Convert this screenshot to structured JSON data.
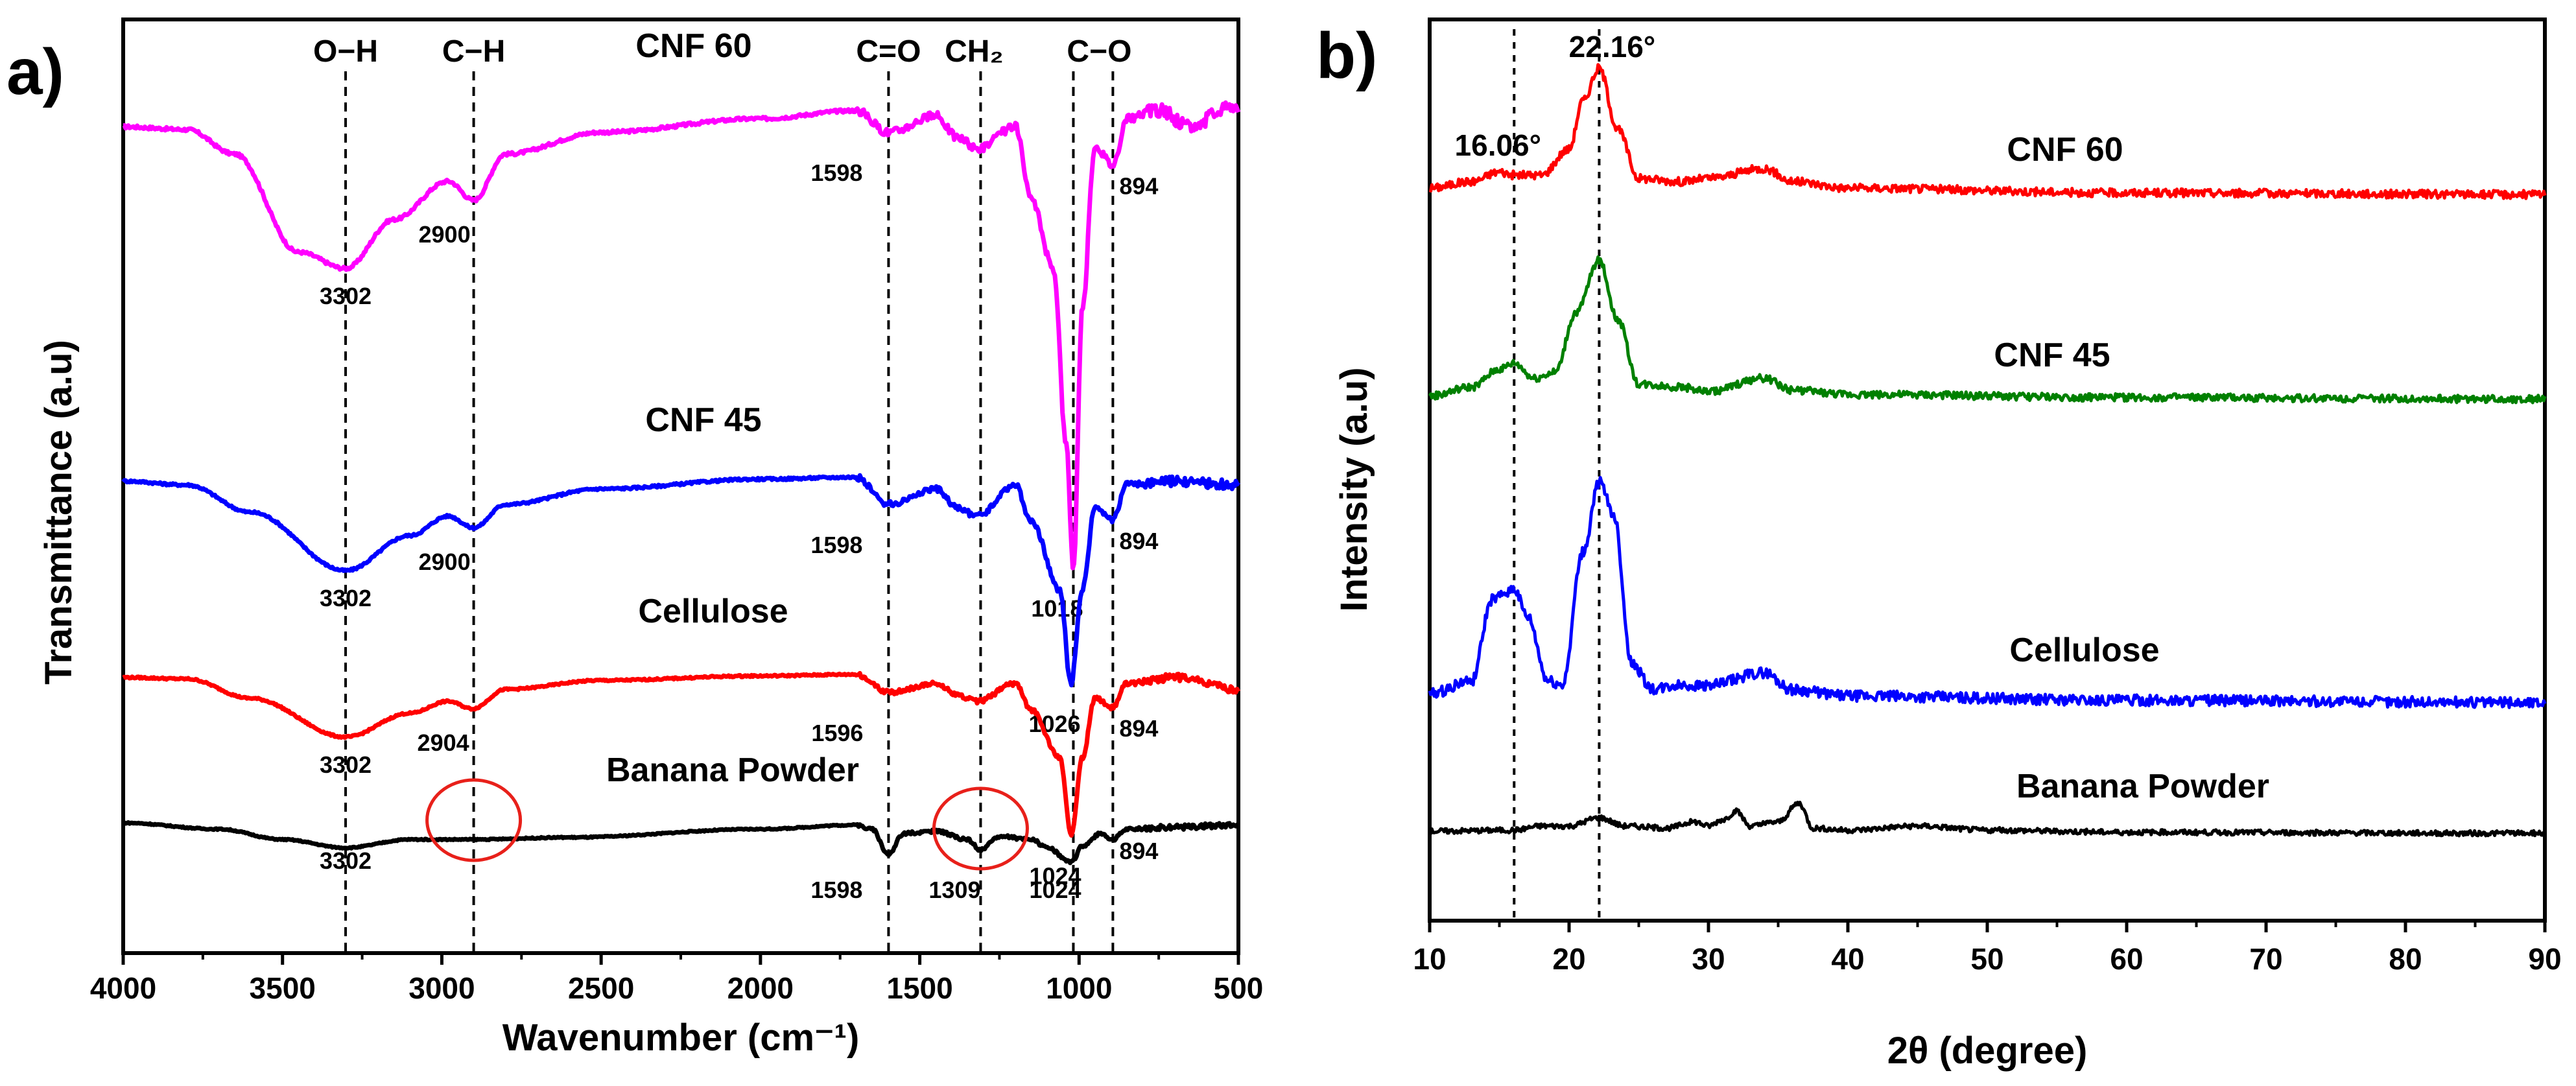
{
  "panels": [
    {
      "letter": "a)",
      "xlabel": "Wavenumber (cm⁻¹)",
      "ylabel": "Transmittance (a.u)",
      "xticks": [
        "4000",
        "3500",
        "3000",
        "2500",
        "2000",
        "1500",
        "1000",
        "500"
      ],
      "band_labels": [
        "O−H",
        "C−H",
        "C=O",
        "CH₂",
        "C−O"
      ]
    },
    {
      "letter": "b)",
      "xlabel": "2θ (degree)",
      "ylabel": "Intensity (a.u)",
      "xticks": [
        "10",
        "20",
        "30",
        "40",
        "50",
        "60",
        "70",
        "80",
        "90"
      ],
      "peak_labels": [
        "16.06°",
        "22.16°"
      ]
    }
  ],
  "chart_data": [
    {
      "type": "line",
      "title": "",
      "xlabel": "Wavenumber (cm⁻¹)",
      "ylabel": "Transmittance (a.u)",
      "xlim": [
        4000,
        500
      ],
      "x_reversed": true,
      "y_ticks_shown": false,
      "grid": false,
      "legend": "none (series labelled directly on curves)",
      "reference_lines_x": [
        3302,
        2900,
        1598,
        1309,
        1018,
        894
      ],
      "band_assignments": [
        {
          "label": "O−H",
          "x": 3302
        },
        {
          "label": "C−H",
          "x": 2900
        },
        {
          "label": "C=O",
          "x": 1598
        },
        {
          "label": "CH₂",
          "x": 1309
        },
        {
          "label": "C−O",
          "x": 1018
        }
      ],
      "series": [
        {
          "name": "CNF 60",
          "color": "#ff00ff",
          "offset": 3,
          "peaks": [
            "3302",
            "2900",
            "1598",
            "1018",
            "894"
          ],
          "points": [
            [
              4000,
              0.82
            ],
            [
              3800,
              0.81
            ],
            [
              3650,
              0.72
            ],
            [
              3450,
              0.36
            ],
            [
              3302,
              0.3
            ],
            [
              3150,
              0.48
            ],
            [
              2980,
              0.62
            ],
            [
              2900,
              0.55
            ],
            [
              2800,
              0.72
            ],
            [
              2500,
              0.8
            ],
            [
              2000,
              0.85
            ],
            [
              1700,
              0.88
            ],
            [
              1598,
              0.8
            ],
            [
              1450,
              0.86
            ],
            [
              1380,
              0.78
            ],
            [
              1320,
              0.74
            ],
            [
              1200,
              0.82
            ],
            [
              1150,
              0.55
            ],
            [
              1080,
              0.3
            ],
            [
              1040,
              -0.35
            ],
            [
              1018,
              -0.8
            ],
            [
              990,
              0.15
            ],
            [
              950,
              0.75
            ],
            [
              894,
              0.68
            ],
            [
              850,
              0.85
            ],
            [
              750,
              0.88
            ],
            [
              650,
              0.82
            ],
            [
              520,
              0.9
            ],
            [
              500,
              0.88
            ]
          ]
        },
        {
          "name": "CNF 45",
          "color": "#0000ff",
          "offset": 2,
          "peaks": [
            "3302",
            "2900",
            "1598",
            "1026",
            "894"
          ],
          "points": [
            [
              4000,
              0.76
            ],
            [
              3800,
              0.74
            ],
            [
              3600,
              0.6
            ],
            [
              3302,
              0.3
            ],
            [
              3100,
              0.48
            ],
            [
              2980,
              0.58
            ],
            [
              2900,
              0.52
            ],
            [
              2800,
              0.64
            ],
            [
              2500,
              0.72
            ],
            [
              2000,
              0.77
            ],
            [
              1700,
              0.78
            ],
            [
              1598,
              0.64
            ],
            [
              1450,
              0.72
            ],
            [
              1380,
              0.62
            ],
            [
              1320,
              0.58
            ],
            [
              1200,
              0.74
            ],
            [
              1150,
              0.55
            ],
            [
              1060,
              0.2
            ],
            [
              1026,
              -0.28
            ],
            [
              990,
              0.2
            ],
            [
              950,
              0.62
            ],
            [
              894,
              0.56
            ],
            [
              850,
              0.74
            ],
            [
              700,
              0.76
            ],
            [
              500,
              0.74
            ]
          ]
        },
        {
          "name": "Cellulose",
          "color": "#ff0000",
          "offset": 1,
          "peaks": [
            "3302",
            "2904",
            "1596",
            "1024",
            "894"
          ],
          "points": [
            [
              4000,
              0.74
            ],
            [
              3800,
              0.73
            ],
            [
              3600,
              0.6
            ],
            [
              3302,
              0.34
            ],
            [
              3100,
              0.5
            ],
            [
              2980,
              0.58
            ],
            [
              2904,
              0.53
            ],
            [
              2800,
              0.66
            ],
            [
              2500,
              0.72
            ],
            [
              2000,
              0.75
            ],
            [
              1700,
              0.76
            ],
            [
              1596,
              0.64
            ],
            [
              1450,
              0.7
            ],
            [
              1380,
              0.62
            ],
            [
              1320,
              0.58
            ],
            [
              1200,
              0.7
            ],
            [
              1150,
              0.52
            ],
            [
              1060,
              0.2
            ],
            [
              1024,
              -0.32
            ],
            [
              990,
              0.2
            ],
            [
              950,
              0.6
            ],
            [
              894,
              0.54
            ],
            [
              850,
              0.7
            ],
            [
              700,
              0.74
            ],
            [
              500,
              0.66
            ]
          ]
        },
        {
          "name": "Banana Powder",
          "color": "#000000",
          "offset": 0,
          "peaks": [
            "3302",
            "1598",
            "1309",
            "1024",
            "894"
          ],
          "points": [
            [
              4000,
              0.88
            ],
            [
              3700,
              0.82
            ],
            [
              3500,
              0.72
            ],
            [
              3302,
              0.64
            ],
            [
              3100,
              0.72
            ],
            [
              2900,
              0.72
            ],
            [
              2600,
              0.74
            ],
            [
              2000,
              0.82
            ],
            [
              1700,
              0.86
            ],
            [
              1650,
              0.82
            ],
            [
              1598,
              0.58
            ],
            [
              1550,
              0.78
            ],
            [
              1450,
              0.8
            ],
            [
              1350,
              0.72
            ],
            [
              1309,
              0.62
            ],
            [
              1250,
              0.75
            ],
            [
              1150,
              0.72
            ],
            [
              1100,
              0.64
            ],
            [
              1024,
              0.5
            ],
            [
              990,
              0.66
            ],
            [
              930,
              0.78
            ],
            [
              894,
              0.72
            ],
            [
              850,
              0.82
            ],
            [
              700,
              0.84
            ],
            [
              500,
              0.86
            ]
          ]
        }
      ]
    },
    {
      "type": "line",
      "title": "",
      "xlabel": "2θ (degree)",
      "ylabel": "Intensity (a.u)",
      "xlim": [
        10,
        90
      ],
      "y_ticks_shown": false,
      "grid": false,
      "legend": "none (series labelled directly on curves)",
      "reference_lines_x": [
        16.06,
        22.16
      ],
      "series": [
        {
          "name": "CNF 60",
          "color": "#ff0000",
          "offset": 3,
          "points": [
            [
              10,
              0.06
            ],
            [
              13,
              0.1
            ],
            [
              15,
              0.16
            ],
            [
              16.06,
              0.14
            ],
            [
              18,
              0.14
            ],
            [
              20,
              0.3
            ],
            [
              21,
              0.6
            ],
            [
              22.16,
              0.8
            ],
            [
              23.5,
              0.42
            ],
            [
              25,
              0.12
            ],
            [
              28,
              0.1
            ],
            [
              30,
              0.12
            ],
            [
              34,
              0.18
            ],
            [
              36,
              0.1
            ],
            [
              40,
              0.06
            ],
            [
              60,
              0.03
            ],
            [
              90,
              0.02
            ]
          ]
        },
        {
          "name": "CNF 45",
          "color": "#008000",
          "offset": 2,
          "points": [
            [
              10,
              0.04
            ],
            [
              13,
              0.1
            ],
            [
              15,
              0.22
            ],
            [
              16.06,
              0.26
            ],
            [
              17.5,
              0.16
            ],
            [
              19,
              0.2
            ],
            [
              20.5,
              0.6
            ],
            [
              22.16,
              0.95
            ],
            [
              23.5,
              0.55
            ],
            [
              25,
              0.12
            ],
            [
              28,
              0.1
            ],
            [
              30,
              0.07
            ],
            [
              34,
              0.16
            ],
            [
              36,
              0.08
            ],
            [
              40,
              0.05
            ],
            [
              60,
              0.03
            ],
            [
              90,
              0.02
            ]
          ]
        },
        {
          "name": "Cellulose",
          "color": "#0000ff",
          "offset": 1,
          "points": [
            [
              10,
              0.06
            ],
            [
              13,
              0.12
            ],
            [
              14.5,
              0.5
            ],
            [
              16.06,
              0.55
            ],
            [
              17,
              0.42
            ],
            [
              18.5,
              0.12
            ],
            [
              19.5,
              0.1
            ],
            [
              21,
              0.72
            ],
            [
              22.16,
              1.05
            ],
            [
              23.2,
              0.9
            ],
            [
              24.5,
              0.2
            ],
            [
              26,
              0.08
            ],
            [
              28,
              0.1
            ],
            [
              30,
              0.1
            ],
            [
              34,
              0.16
            ],
            [
              36,
              0.08
            ],
            [
              40,
              0.05
            ],
            [
              60,
              0.03
            ],
            [
              90,
              0.02
            ]
          ]
        },
        {
          "name": "Banana Powder",
          "color": "#000000",
          "offset": 0,
          "points": [
            [
              10,
              0.05
            ],
            [
              16,
              0.06
            ],
            [
              18,
              0.1
            ],
            [
              20,
              0.1
            ],
            [
              22.16,
              0.18
            ],
            [
              24,
              0.1
            ],
            [
              27,
              0.08
            ],
            [
              29,
              0.14
            ],
            [
              30,
              0.1
            ],
            [
              31,
              0.16
            ],
            [
              32,
              0.24
            ],
            [
              33,
              0.1
            ],
            [
              35,
              0.14
            ],
            [
              36.5,
              0.32
            ],
            [
              37.5,
              0.08
            ],
            [
              40,
              0.06
            ],
            [
              45,
              0.1
            ],
            [
              50,
              0.06
            ],
            [
              60,
              0.04
            ],
            [
              90,
              0.03
            ]
          ]
        }
      ]
    }
  ]
}
